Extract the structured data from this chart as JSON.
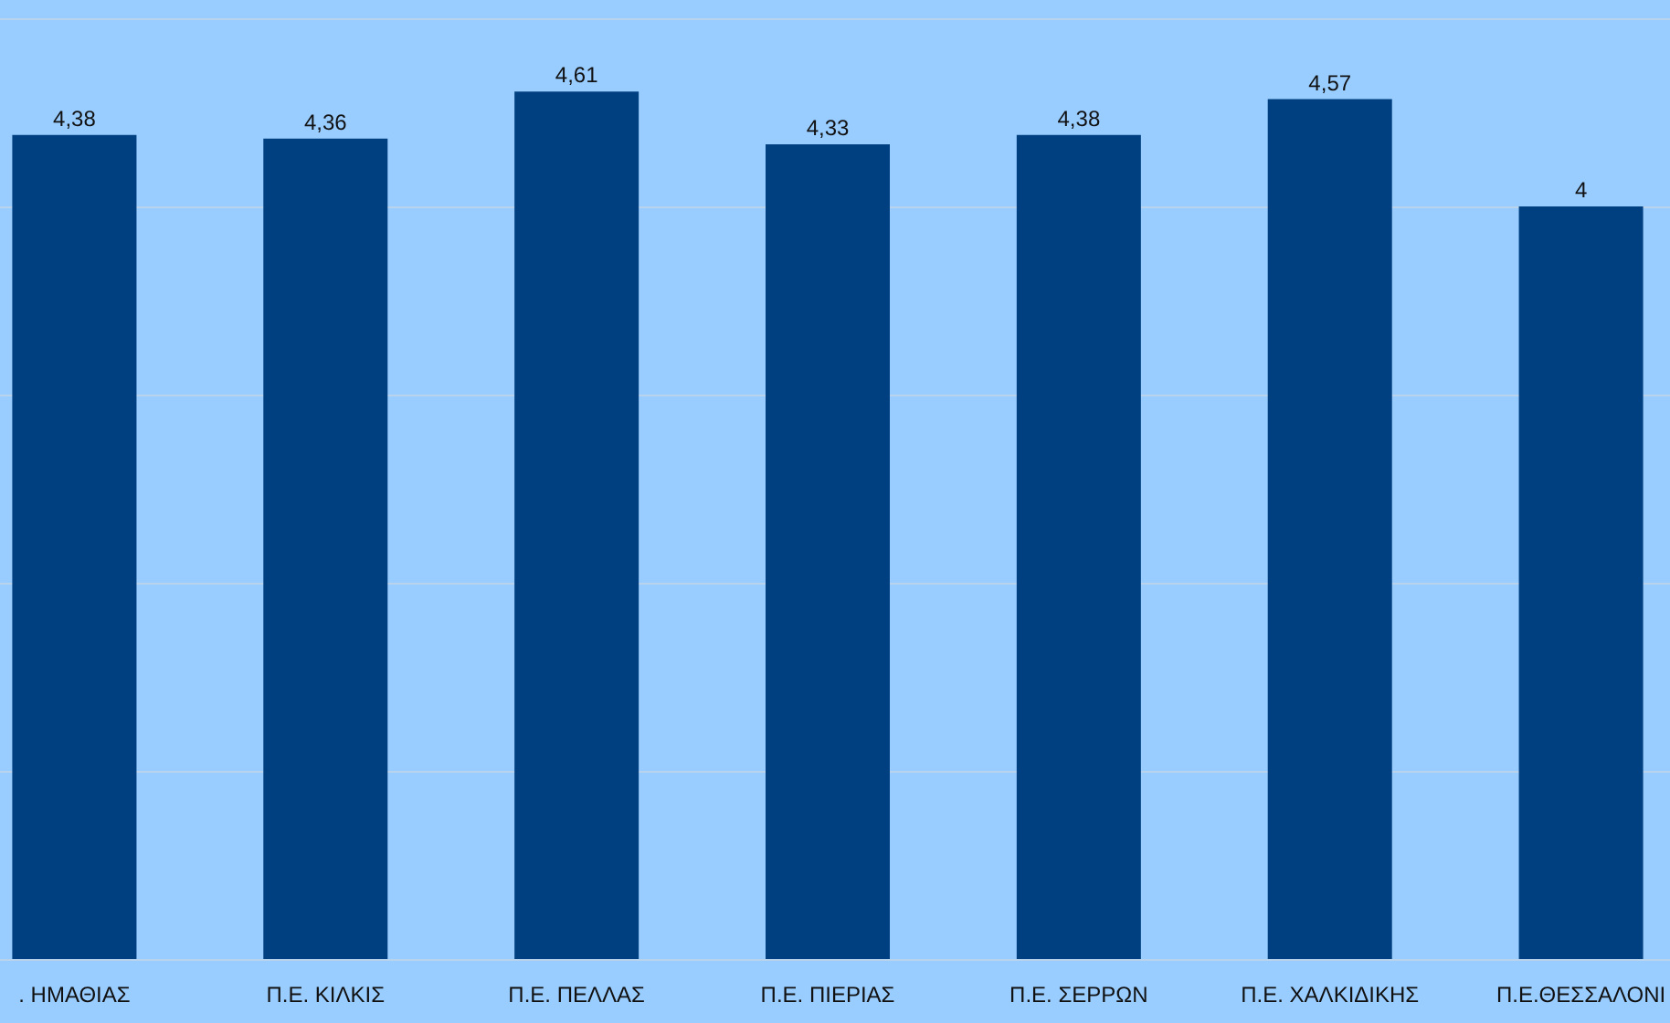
{
  "chart_data": {
    "type": "bar",
    "categories": [
      ". ΗΜΑΘΙΑΣ",
      "Π.Ε. ΚΙΛΚΙΣ",
      "Π.Ε. ΠΕΛΛΑΣ",
      "Π.Ε. ΠΙΕΡΙΑΣ",
      "Π.Ε. ΣΕΡΡΩΝ",
      "Π.Ε. ΧΑΛΚΙΔΙΚΗΣ",
      "Π.Ε.ΘΕΣΣΑΛΟΝΙ"
    ],
    "values": [
      4.38,
      4.36,
      4.61,
      4.33,
      4.38,
      4.57,
      4
    ],
    "value_labels": [
      "4,38",
      "4,36",
      "4,61",
      "4,33",
      "4,38",
      "4,57",
      "4"
    ],
    "color": "#004080",
    "ylim": [
      0,
      5
    ],
    "yticks": [
      {
        "value": 0,
        "label": null
      },
      {
        "value": 1,
        "label": null
      },
      {
        "value": 2,
        "label": null
      },
      {
        "value": 3,
        "label": null
      },
      {
        "value": 4,
        "label": null
      },
      {
        "value": 5,
        "label": null
      }
    ],
    "grid": "y",
    "tick_labels": "x"
  }
}
